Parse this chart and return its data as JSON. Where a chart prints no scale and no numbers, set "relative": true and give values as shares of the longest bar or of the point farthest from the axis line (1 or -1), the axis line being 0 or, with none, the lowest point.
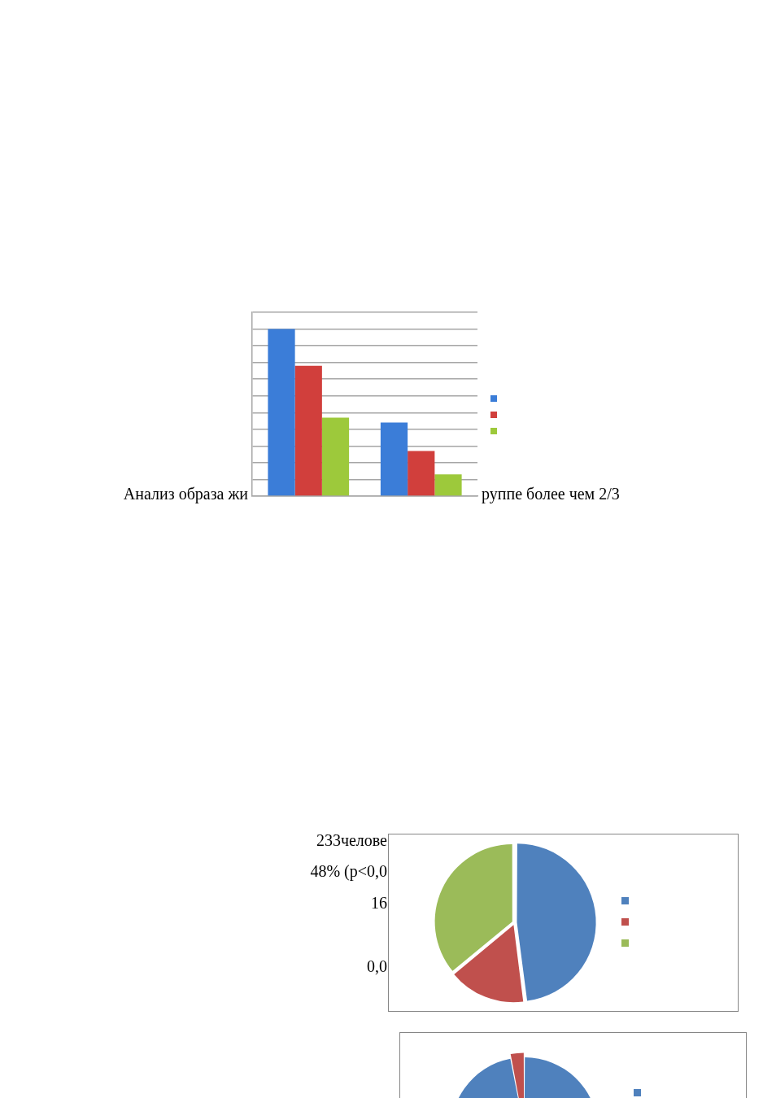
{
  "chart_data": [
    {
      "type": "bar",
      "categories": [
        null,
        null
      ],
      "relative": true,
      "series": [
        {
          "color": "#3b7dd8",
          "values": [
            1,
            0.44
          ]
        },
        {
          "color": "#d13f3c",
          "values": [
            0.78,
            0.27
          ]
        },
        {
          "color": "#9dc93b",
          "values": [
            0.47,
            0.13
          ]
        }
      ],
      "grid": "y",
      "annotations": [
        "Анализ образа жи",
        "руппе более чем 2/3"
      ]
    },
    {
      "type": "pie",
      "categories": [
        null,
        null,
        null
      ],
      "values": [
        48,
        16,
        36
      ],
      "colors": [
        "#4f81bd",
        "#c0504d",
        "#9bbb59"
      ],
      "annotations": [
        "233челове",
        "48% (p<0,0",
        "16",
        "0,0"
      ]
    },
    {
      "type": "pie",
      "categories": [
        null,
        null
      ],
      "values": [
        97,
        3
      ],
      "colors": [
        "#4f81bd",
        "#c0504d"
      ]
    }
  ]
}
